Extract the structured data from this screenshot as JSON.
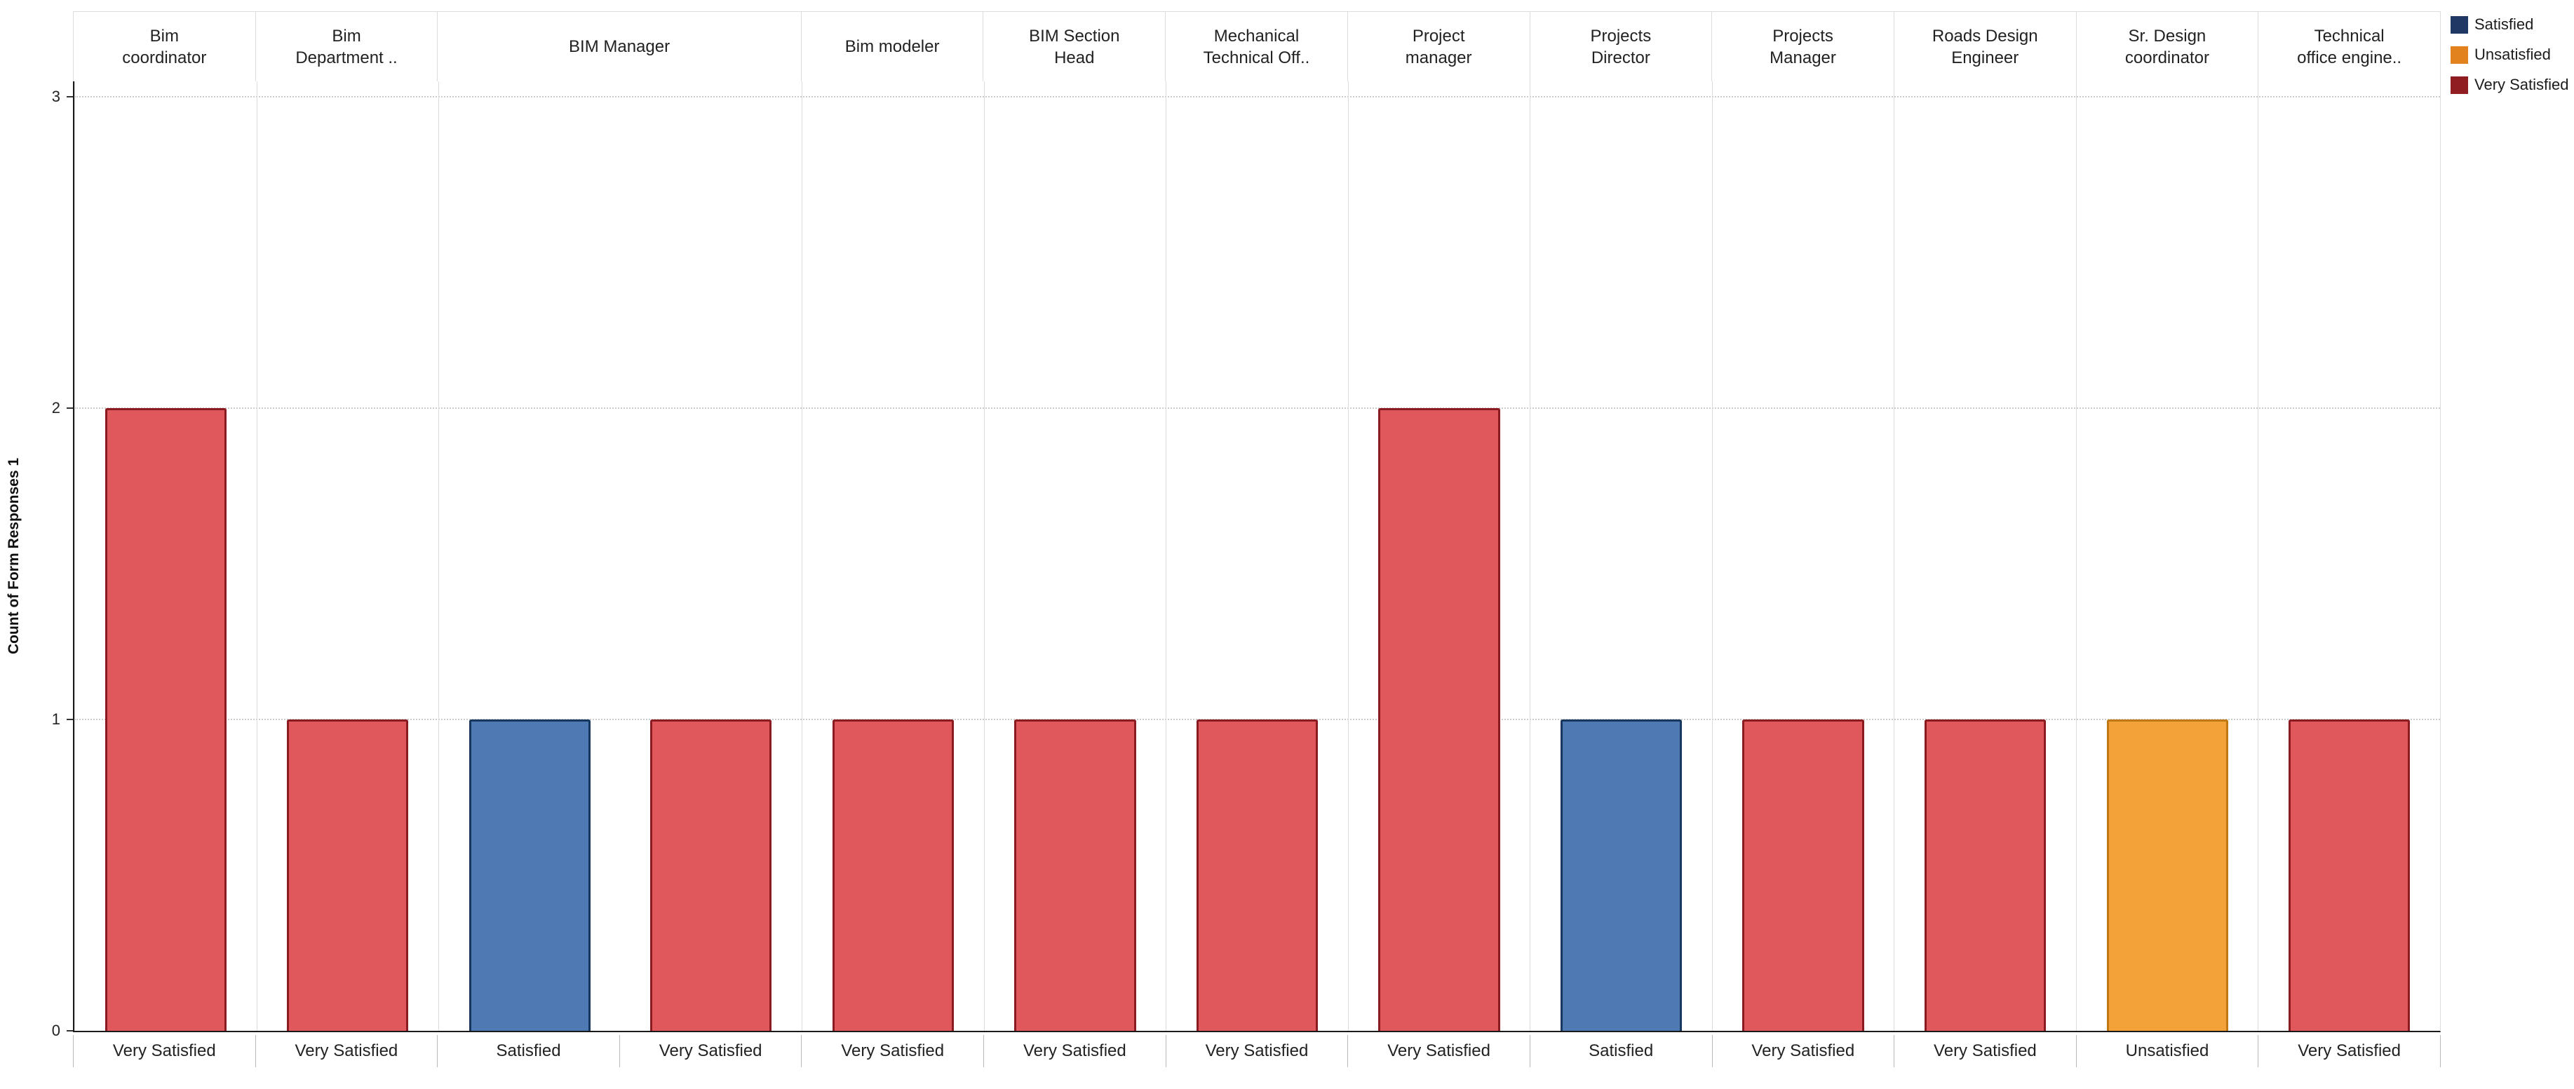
{
  "chart_data": {
    "type": "bar",
    "title": "",
    "ylabel": "Count of Form Responses 1",
    "ylim": [
      0,
      3
    ],
    "yticks": [
      0,
      1,
      2,
      3
    ],
    "grid": "horizontal-dotted",
    "legend_position": "top-right",
    "legend": [
      {
        "label": "Satisfied",
        "swatch": "#1f3864"
      },
      {
        "label": "Unsatisfied",
        "swatch": "#e2821e"
      },
      {
        "label": "Very Satisfied",
        "swatch": "#8f1d21"
      }
    ],
    "series_colors": {
      "Satisfied": {
        "fill": "#4e79b2",
        "border": "#17375e"
      },
      "Unsatisfied": {
        "fill": "#f3a23a",
        "border": "#c07812"
      },
      "Very Satisfied": {
        "fill": "#e0585c",
        "border": "#8a1b20"
      }
    },
    "panels": [
      {
        "role": "Bim\ncoordinator",
        "bars": [
          {
            "category": "Very Satisfied",
            "value": 2
          }
        ]
      },
      {
        "role": "Bim\nDepartment ..",
        "bars": [
          {
            "category": "Very Satisfied",
            "value": 1
          }
        ]
      },
      {
        "role": "BIM Manager",
        "bars": [
          {
            "category": "Satisfied",
            "value": 1
          },
          {
            "category": "Very Satisfied",
            "value": 1
          }
        ]
      },
      {
        "role": "Bim modeler",
        "bars": [
          {
            "category": "Very Satisfied",
            "value": 1
          }
        ]
      },
      {
        "role": "BIM Section\nHead",
        "bars": [
          {
            "category": "Very Satisfied",
            "value": 1
          }
        ]
      },
      {
        "role": "Mechanical\nTechnical Off..",
        "bars": [
          {
            "category": "Very Satisfied",
            "value": 1
          }
        ]
      },
      {
        "role": "Project\nmanager",
        "bars": [
          {
            "category": "Very Satisfied",
            "value": 2
          }
        ]
      },
      {
        "role": "Projects\nDirector",
        "bars": [
          {
            "category": "Satisfied",
            "value": 1
          }
        ]
      },
      {
        "role": "Projects\nManager",
        "bars": [
          {
            "category": "Very Satisfied",
            "value": 1
          }
        ]
      },
      {
        "role": "Roads Design\nEngineer",
        "bars": [
          {
            "category": "Very Satisfied",
            "value": 1
          }
        ]
      },
      {
        "role": "Sr. Design\ncoordinator",
        "bars": [
          {
            "category": "Unsatisfied",
            "value": 1
          }
        ]
      },
      {
        "role": "Technical\noffice engine..",
        "bars": [
          {
            "category": "Very Satisfied",
            "value": 1
          }
        ]
      }
    ]
  }
}
